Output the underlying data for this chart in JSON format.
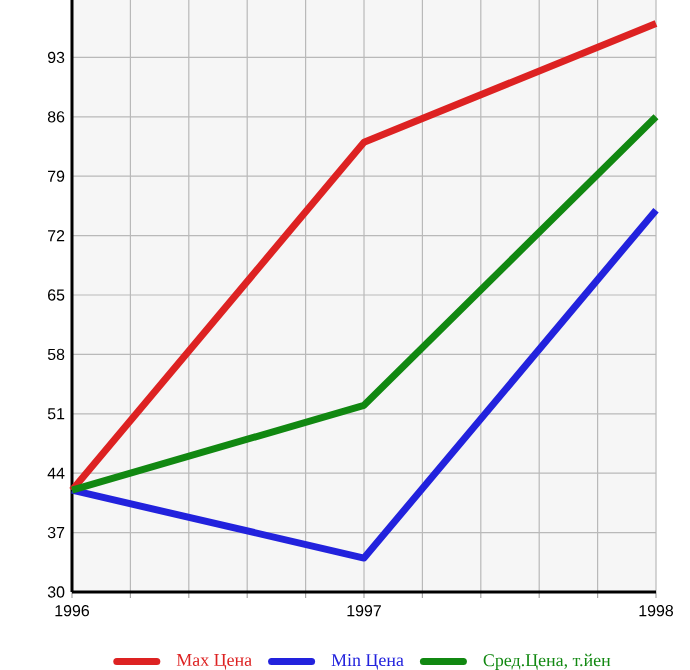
{
  "chart_data": {
    "type": "line",
    "x": [
      1996,
      1997,
      1998
    ],
    "series": [
      {
        "name": "Max Цена",
        "color": "#dd2222",
        "values": [
          42,
          83,
          97
        ]
      },
      {
        "name": "Min Цена",
        "color": "#2222dd",
        "values": [
          42,
          34,
          75
        ]
      },
      {
        "name": "Сред.Цена, т.йен",
        "color": "#118811",
        "values": [
          42,
          52,
          86
        ]
      }
    ],
    "xlim": [
      1996,
      1998
    ],
    "xticks": [
      1996,
      {
        "value": 1996.2,
        "label": null
      },
      {
        "value": 1996.4,
        "label": null
      },
      {
        "value": 1996.6,
        "label": null
      },
      {
        "value": 1996.8,
        "label": null
      },
      1997,
      {
        "value": 1997.2,
        "label": null
      },
      {
        "value": 1997.4,
        "label": null
      },
      {
        "value": 1997.6,
        "label": null
      },
      {
        "value": 1997.8,
        "label": null
      },
      1998
    ],
    "ylim": [
      30,
      100
    ],
    "yticks": [
      30,
      37,
      44,
      51,
      58,
      65,
      72,
      79,
      86,
      93,
      {
        "value": 100,
        "label": null
      }
    ],
    "grid": true,
    "legend": "bottom",
    "marker": "none",
    "line_style": "solid"
  }
}
